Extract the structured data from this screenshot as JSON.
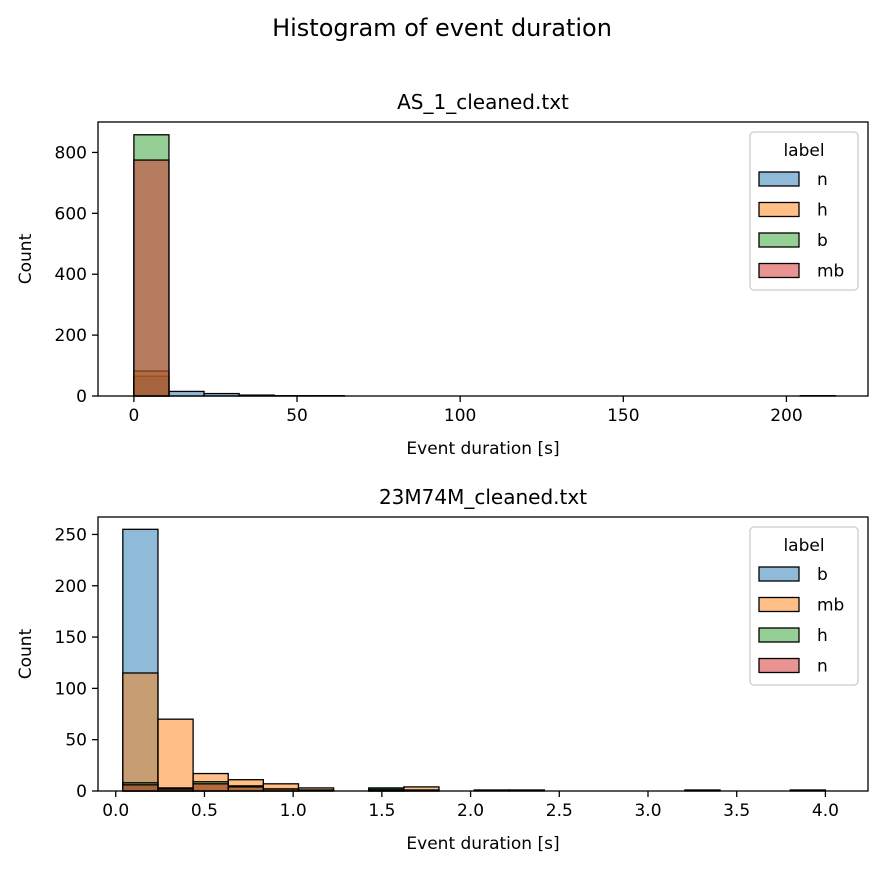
{
  "figure_title": "Histogram of event duration",
  "colors": {
    "c0": "#1f77b4",
    "c1": "#ff7f0e",
    "c2": "#2ca02c",
    "c3": "#d62728"
  },
  "chart_data": [
    {
      "type": "bar",
      "title": "AS_1_cleaned.txt",
      "xlabel": "Event duration [s]",
      "ylabel": "Count",
      "xlim": [
        -11,
        225
      ],
      "ylim": [
        0,
        900
      ],
      "xticks": [
        0,
        50,
        100,
        150,
        200
      ],
      "xtick_labels": [
        "0",
        "50",
        "100",
        "150",
        "200"
      ],
      "yticks": [
        0,
        200,
        400,
        600,
        800
      ],
      "ytick_labels": [
        "0",
        "200",
        "400",
        "600",
        "800"
      ],
      "grid": false,
      "legend_title": "label",
      "legend_position": "top-right",
      "bin_edges": [
        0,
        10.75,
        21.5,
        32.25,
        43,
        53.75,
        64.5,
        75.25,
        86,
        96.75,
        107.5,
        118.25,
        129,
        139.75,
        150.5,
        161.25,
        172,
        182.75,
        193.5,
        204.25,
        215
      ],
      "series": [
        {
          "name": "n",
          "color": "#1f77b4",
          "values": [
            65,
            15,
            8,
            3,
            1,
            1,
            0,
            0,
            0,
            0,
            0,
            0,
            0,
            0,
            0,
            0,
            0,
            0,
            0,
            1
          ]
        },
        {
          "name": "h",
          "color": "#ff7f0e",
          "values": [
            82,
            0,
            0,
            0,
            0,
            0,
            0,
            0,
            0,
            0,
            0,
            0,
            0,
            0,
            0,
            0,
            0,
            0,
            0,
            0
          ]
        },
        {
          "name": "b",
          "color": "#2ca02c",
          "values": [
            858,
            0,
            0,
            0,
            0,
            0,
            0,
            0,
            0,
            0,
            0,
            0,
            0,
            0,
            0,
            0,
            0,
            0,
            0,
            0
          ]
        },
        {
          "name": "mb",
          "color": "#d62728",
          "values": [
            775,
            0,
            0,
            0,
            0,
            0,
            0,
            0,
            0,
            0,
            0,
            0,
            0,
            0,
            0,
            0,
            0,
            0,
            0,
            0
          ]
        }
      ]
    },
    {
      "type": "bar",
      "title": "23M74M_cleaned.txt",
      "xlabel": "Event duration [s]",
      "ylabel": "Count",
      "xlim": [
        -0.1,
        4.24
      ],
      "ylim": [
        0,
        267
      ],
      "xticks": [
        0,
        0.5,
        1.0,
        1.5,
        2.0,
        2.5,
        3.0,
        3.5,
        4.0
      ],
      "xtick_labels": [
        "0.0",
        "0.5",
        "1.0",
        "1.5",
        "2.0",
        "2.5",
        "3.0",
        "3.5",
        "4.0"
      ],
      "yticks": [
        0,
        50,
        100,
        150,
        200,
        250
      ],
      "ytick_labels": [
        "0",
        "50",
        "100",
        "150",
        "200",
        "250"
      ],
      "grid": false,
      "legend_title": "label",
      "legend_position": "top-right",
      "bin_edges": [
        0.04,
        0.238,
        0.436,
        0.634,
        0.832,
        1.03,
        1.228,
        1.426,
        1.624,
        1.822,
        2.02,
        2.218,
        2.416,
        2.614,
        2.812,
        3.01,
        3.208,
        3.406,
        3.604,
        3.802,
        4.0
      ],
      "series": [
        {
          "name": "b",
          "color": "#1f77b4",
          "values": [
            255,
            1,
            0,
            0,
            0,
            0,
            0,
            0,
            0,
            0,
            0,
            0,
            0,
            0,
            0,
            0,
            0,
            0,
            0,
            0
          ]
        },
        {
          "name": "mb",
          "color": "#ff7f0e",
          "values": [
            115,
            70,
            17,
            11,
            7,
            3,
            0,
            2,
            4,
            0,
            1,
            1,
            0,
            0,
            0,
            0,
            1,
            0,
            0,
            1
          ]
        },
        {
          "name": "h",
          "color": "#2ca02c",
          "values": [
            8,
            3,
            9,
            5,
            2,
            0,
            0,
            3,
            0,
            0,
            0,
            0,
            0,
            0,
            0,
            0,
            0,
            0,
            0,
            0
          ]
        },
        {
          "name": "n",
          "color": "#d62728",
          "values": [
            6,
            2,
            7,
            4,
            2,
            1,
            0,
            1,
            1,
            0,
            0,
            0,
            0,
            0,
            0,
            0,
            0,
            0,
            0,
            0
          ]
        }
      ]
    }
  ]
}
